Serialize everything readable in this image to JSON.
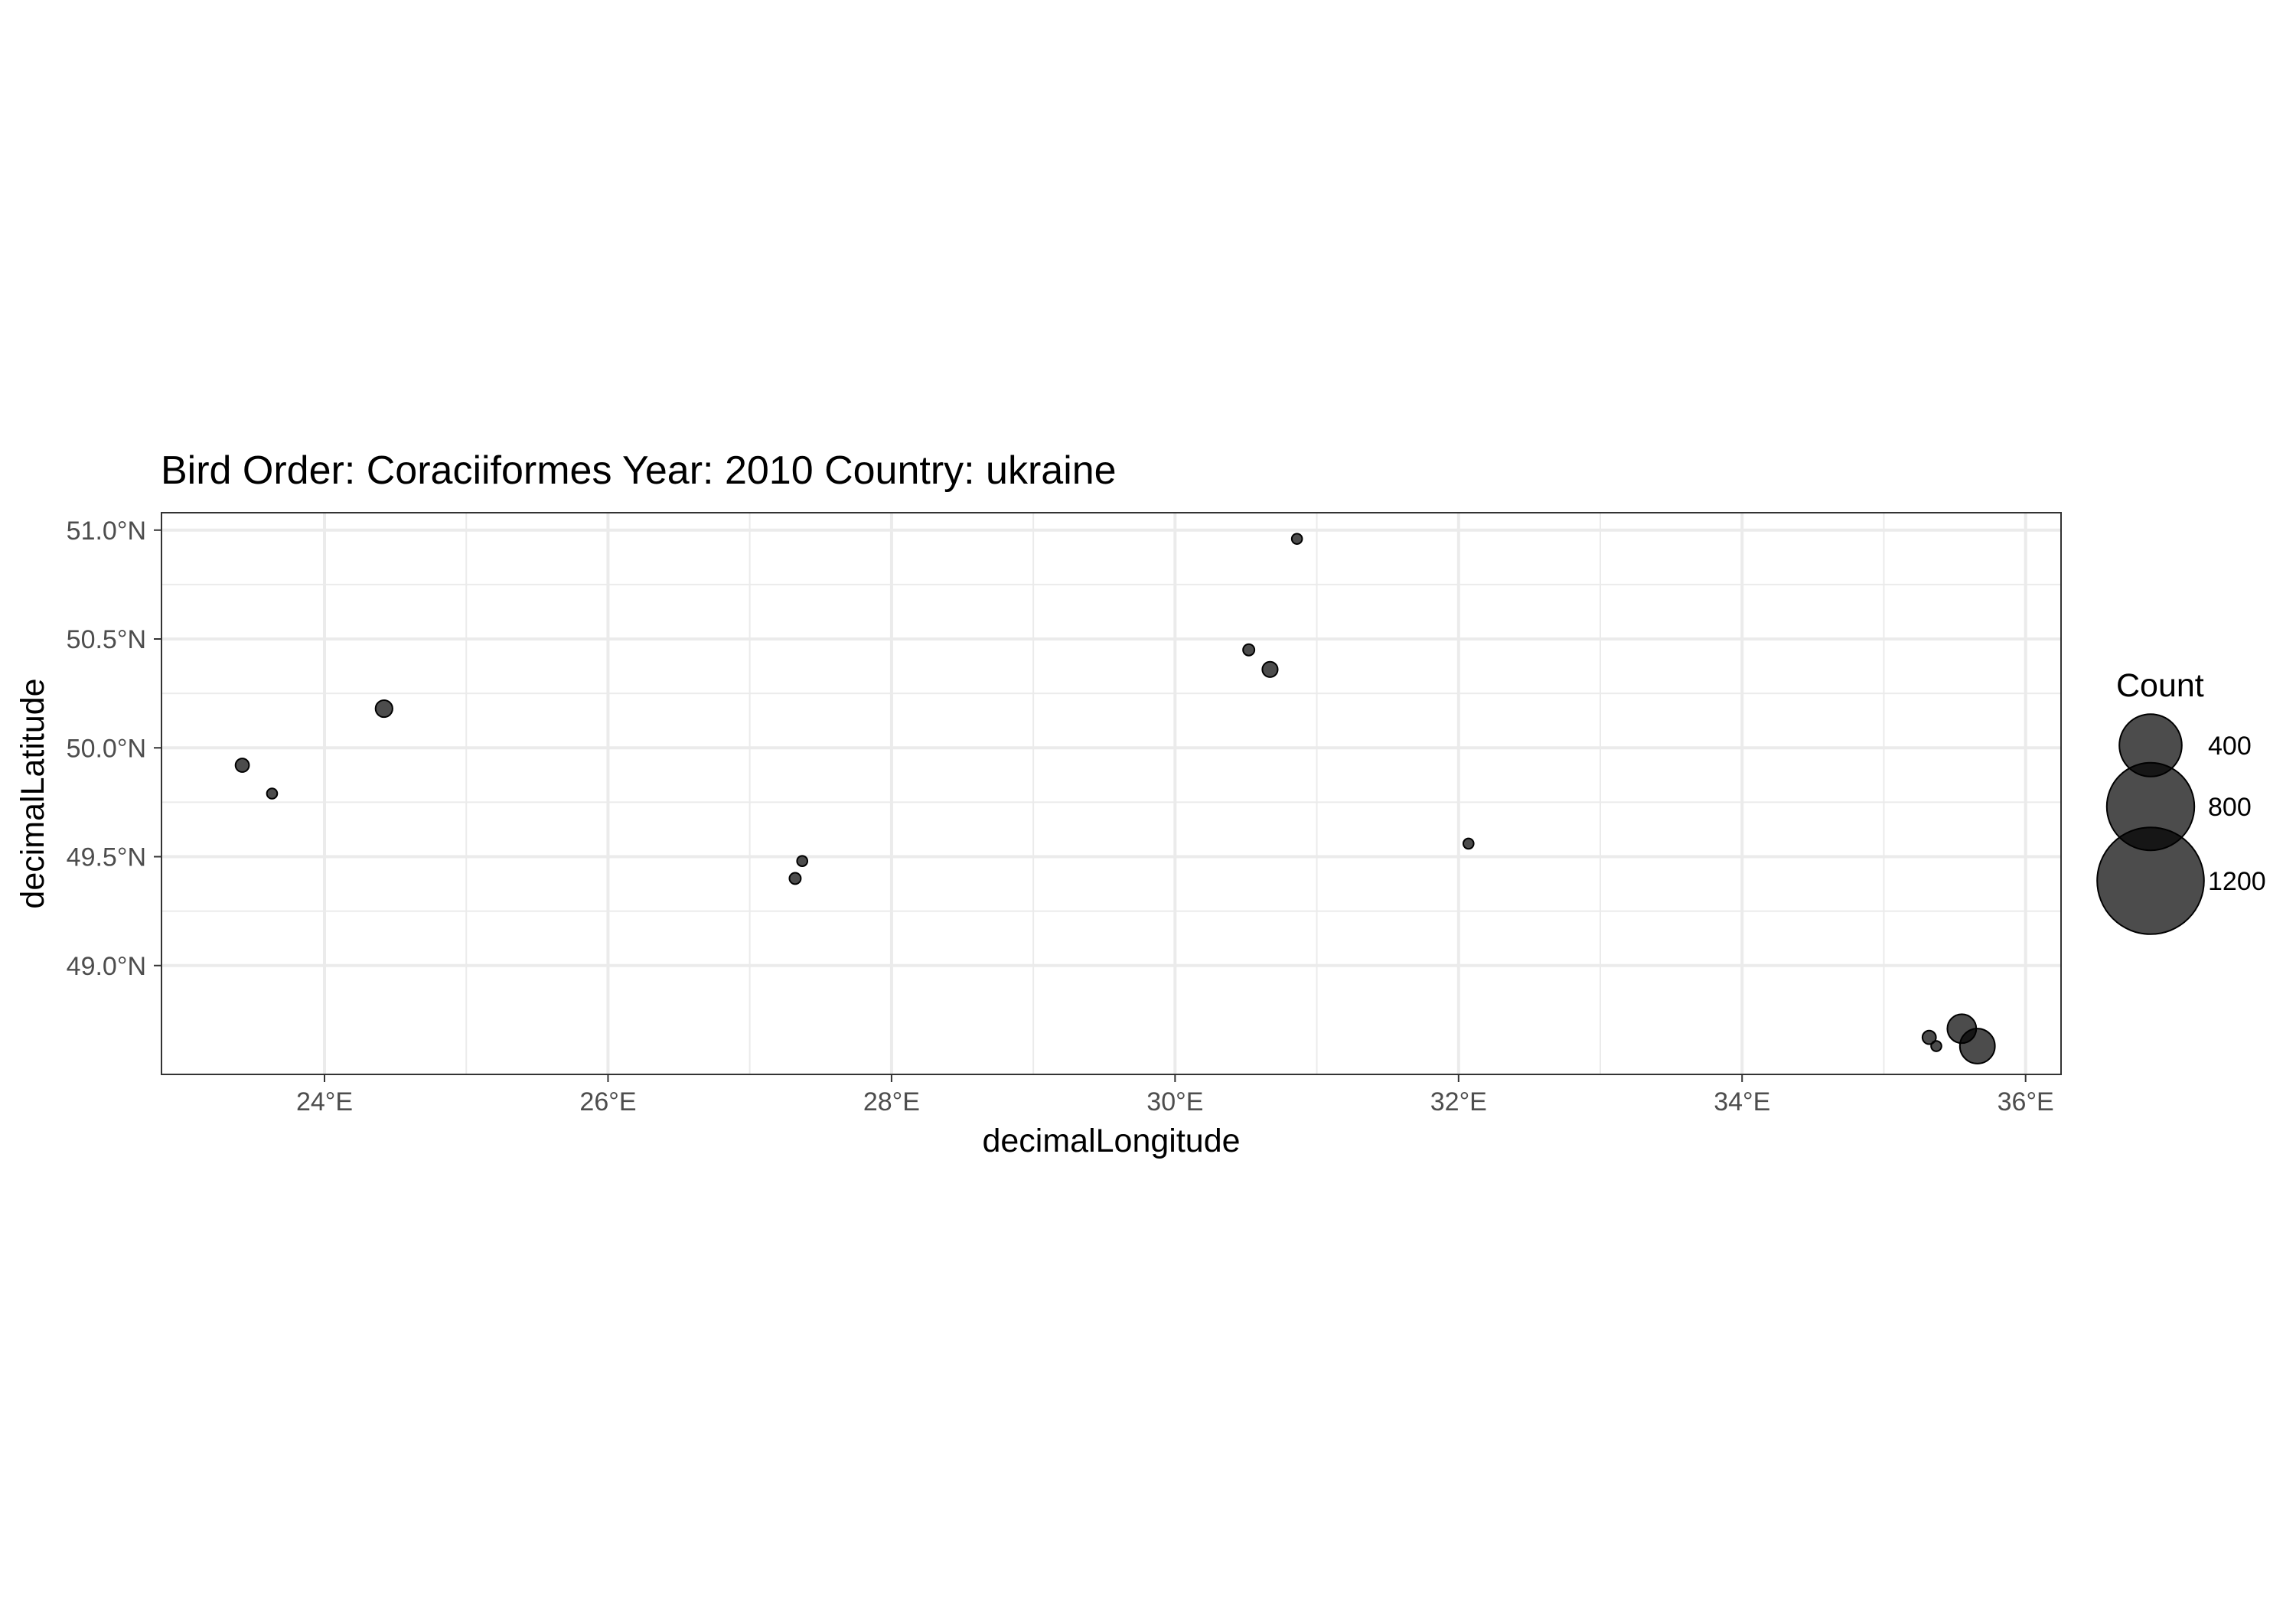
{
  "chart_data": {
    "type": "scatter",
    "title": "Bird Order: Coraciiformes Year: 2010 Country: ukraine",
    "xlabel": "decimalLongitude",
    "ylabel": "decimalLatitude",
    "xlim": [
      22.85,
      36.25
    ],
    "ylim": [
      48.5,
      51.08
    ],
    "x_ticks": [
      {
        "value": 24,
        "label": "24°E"
      },
      {
        "value": 26,
        "label": "26°E"
      },
      {
        "value": 28,
        "label": "28°E"
      },
      {
        "value": 30,
        "label": "30°E"
      },
      {
        "value": 32,
        "label": "32°E"
      },
      {
        "value": 34,
        "label": "34°E"
      },
      {
        "value": 36,
        "label": "36°E"
      }
    ],
    "y_ticks": [
      {
        "value": 49.0,
        "label": "49.0°N"
      },
      {
        "value": 49.5,
        "label": "49.5°N"
      },
      {
        "value": 50.0,
        "label": "50.0°N"
      },
      {
        "value": 50.5,
        "label": "50.5°N"
      },
      {
        "value": 51.0,
        "label": "51.0°N"
      }
    ],
    "grid": true,
    "legend": {
      "title": "Count",
      "placement": "right",
      "entries": [
        {
          "value": 400,
          "label": "400"
        },
        {
          "value": 800,
          "label": "800"
        },
        {
          "value": 1200,
          "label": "1200"
        }
      ]
    },
    "points": [
      {
        "x": 23.42,
        "y": 49.92,
        "count": 15
      },
      {
        "x": 23.63,
        "y": 49.79,
        "count": 8
      },
      {
        "x": 24.42,
        "y": 50.18,
        "count": 25
      },
      {
        "x": 27.32,
        "y": 49.4,
        "count": 10
      },
      {
        "x": 27.37,
        "y": 49.48,
        "count": 8
      },
      {
        "x": 30.52,
        "y": 50.45,
        "count": 10
      },
      {
        "x": 30.67,
        "y": 50.36,
        "count": 20
      },
      {
        "x": 30.86,
        "y": 50.96,
        "count": 8
      },
      {
        "x": 32.07,
        "y": 49.56,
        "count": 8
      },
      {
        "x": 35.32,
        "y": 48.67,
        "count": 15
      },
      {
        "x": 35.37,
        "y": 48.63,
        "count": 8
      },
      {
        "x": 35.55,
        "y": 48.71,
        "count": 80
      },
      {
        "x": 35.66,
        "y": 48.63,
        "count": 120
      }
    ],
    "point_color": "#000000",
    "point_alpha": 0.7
  }
}
